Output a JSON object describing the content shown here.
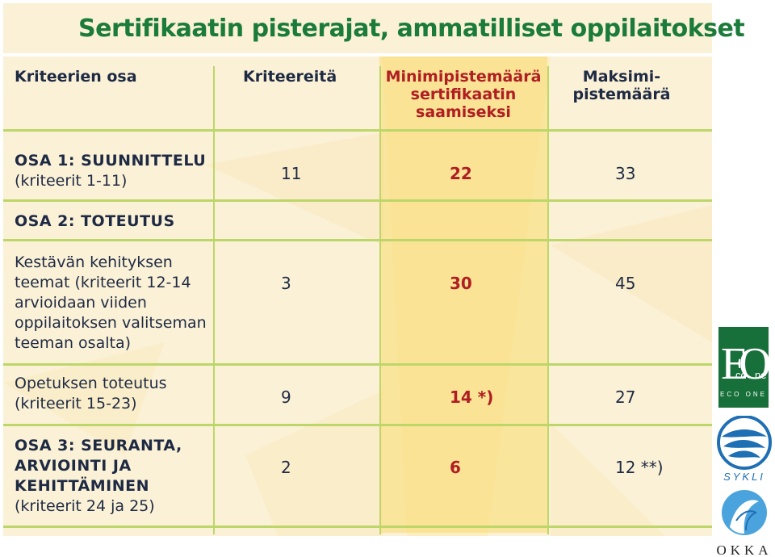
{
  "title": "Sertifikaatin pisterajat, ammatilliset oppilaitokset",
  "headers": {
    "col1": "Kriteerien osa",
    "col2": "Kriteereitä",
    "col3": [
      "Minimipistemäärä",
      "sertifikaatin",
      "saamiseksi"
    ],
    "col4": [
      "Maksimi-",
      "pistemäärä"
    ]
  },
  "rows": [
    {
      "heading": "OSA 1: SUUNNITTELU",
      "lines": [
        "(kriteerit 1-11)"
      ],
      "criteria": "11",
      "min": "22",
      "max": "33"
    },
    {
      "heading": "OSA 2: TOTEUTUS",
      "lines": [],
      "criteria": "",
      "min": "",
      "max": ""
    },
    {
      "heading": "",
      "lines": [
        "Kestävän kehityksen",
        "teemat (kriteerit 12-14",
        "arvioidaan viiden",
        "oppilaitoksen valitseman",
        "teeman osalta)"
      ],
      "criteria": "3",
      "min": "30",
      "max": "45"
    },
    {
      "heading": "",
      "lines": [
        "Opetuksen toteutus",
        "(kriteerit 15-23)"
      ],
      "criteria": "9",
      "min": "14 *)",
      "max": "27"
    },
    {
      "heading_lines": [
        "OSA 3: SEURANTA,",
        "ARVIOINTI JA",
        "KEHITTÄMINEN"
      ],
      "lines": [
        "(kriteerit 24 ja 25)"
      ],
      "criteria": "2",
      "min": "6",
      "max": "12 **)"
    }
  ],
  "logos": {
    "ecoone": {
      "letters": [
        "E",
        "co",
        "O",
        "ne"
      ],
      "tagline": "ECO ONE"
    },
    "sykli": {
      "label": "SYKLI"
    },
    "okka": {
      "label": "OKKA"
    }
  },
  "colors": {
    "title_green": "#1a7b3a",
    "header_navy": "#1e2a44",
    "highlight_red": "#b01d22",
    "grid_green": "#bdd66a",
    "panel_cream": "#fbf1d6",
    "min_column_yellow": "#fada6e",
    "logo_blue": "#1f6fb5"
  }
}
